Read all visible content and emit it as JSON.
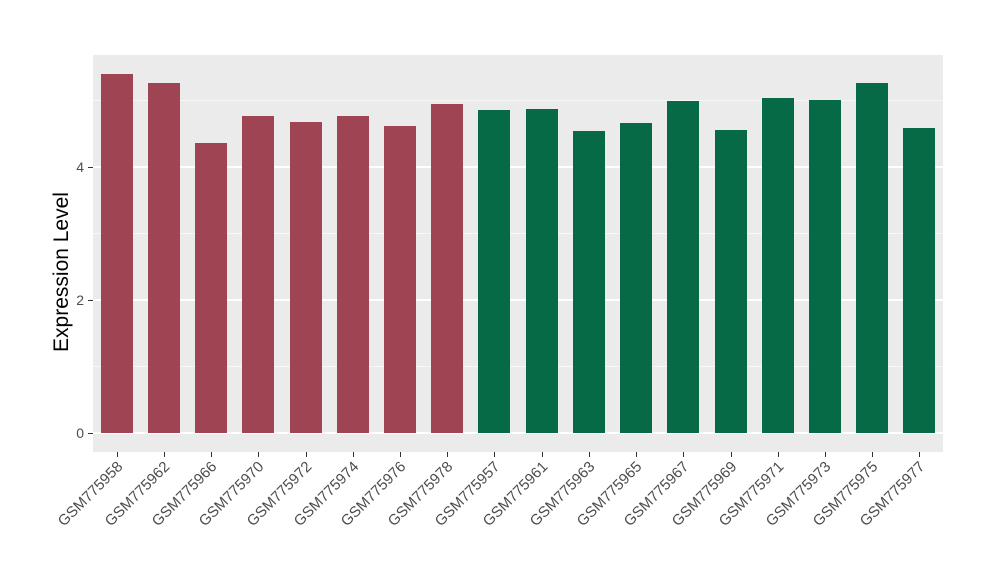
{
  "figure": {
    "background": "#FFFFFF",
    "panel_background": "#EBEBEB",
    "grid_color": "#FFFFFF",
    "axis_text_color": "#4D4D4D",
    "axis_title_color": "#000000",
    "tick_mark_color": "#333333"
  },
  "chart_data": {
    "type": "bar",
    "title": "",
    "xlabel": "",
    "ylabel": "Expression Level",
    "ylim": [
      -0.29,
      5.68
    ],
    "yticks_major": [
      0,
      2,
      4
    ],
    "yticks_minor": [
      1,
      3,
      5
    ],
    "grid": true,
    "legend_position": "none",
    "group_colors": {
      "maroon": "#9E4452",
      "green": "#066A46"
    },
    "bars": [
      {
        "label": "GSM775958",
        "value": 5.4,
        "group": "maroon"
      },
      {
        "label": "GSM775962",
        "value": 5.26,
        "group": "maroon"
      },
      {
        "label": "GSM775966",
        "value": 4.36,
        "group": "maroon"
      },
      {
        "label": "GSM775970",
        "value": 4.77,
        "group": "maroon"
      },
      {
        "label": "GSM775972",
        "value": 4.68,
        "group": "maroon"
      },
      {
        "label": "GSM775974",
        "value": 4.77,
        "group": "maroon"
      },
      {
        "label": "GSM775976",
        "value": 4.62,
        "group": "maroon"
      },
      {
        "label": "GSM775978",
        "value": 4.95,
        "group": "maroon"
      },
      {
        "label": "GSM775957",
        "value": 4.86,
        "group": "green"
      },
      {
        "label": "GSM775961",
        "value": 4.87,
        "group": "green"
      },
      {
        "label": "GSM775963",
        "value": 4.54,
        "group": "green"
      },
      {
        "label": "GSM775965",
        "value": 4.66,
        "group": "green"
      },
      {
        "label": "GSM775967",
        "value": 4.99,
        "group": "green"
      },
      {
        "label": "GSM775969",
        "value": 4.56,
        "group": "green"
      },
      {
        "label": "GSM775971",
        "value": 5.04,
        "group": "green"
      },
      {
        "label": "GSM775973",
        "value": 5.01,
        "group": "green"
      },
      {
        "label": "GSM775975",
        "value": 5.26,
        "group": "green"
      },
      {
        "label": "GSM775977",
        "value": 4.59,
        "group": "green"
      }
    ]
  }
}
